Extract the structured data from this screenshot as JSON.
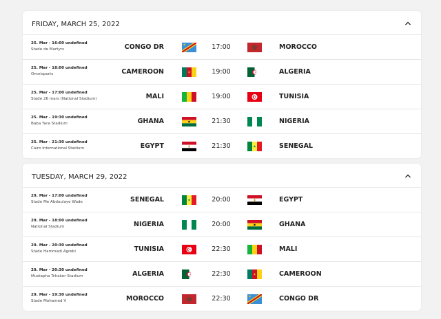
{
  "sections": [
    {
      "title": "FRIDAY, MARCH 25, 2022",
      "matches": [
        {
          "info": "25. Mar - 16:00 undefined",
          "venue": "Stade de Martyrs",
          "home": "CONGO DR",
          "time": "17:00",
          "away": "MOROCCO"
        },
        {
          "info": "25. Mar - 18:00 undefined",
          "venue": "Omnisports",
          "home": "CAMEROON",
          "time": "19:00",
          "away": "ALGERIA"
        },
        {
          "info": "25. Mar - 17:00 undefined",
          "venue": "Stade 26 mars (National Stadium)",
          "home": "MALI",
          "time": "19:00",
          "away": "TUNISIA"
        },
        {
          "info": "25. Mar - 19:30 undefined",
          "venue": "Baba Yara Stadium",
          "home": "GHANA",
          "time": "21:30",
          "away": "NIGERIA"
        },
        {
          "info": "25. Mar - 21:30 undefined",
          "venue": "Cairo International Stadium",
          "home": "EGYPT",
          "time": "21:30",
          "away": "SENEGAL"
        }
      ]
    },
    {
      "title": "TUESDAY, MARCH 29, 2022",
      "matches": [
        {
          "info": "29. Mar - 17:00 undefined",
          "venue": "Stade Me Abdoulaye Wade",
          "home": "SENEGAL",
          "time": "20:00",
          "away": "EGYPT"
        },
        {
          "info": "29. Mar - 18:00 undefined",
          "venue": "National Stadium",
          "home": "NIGERIA",
          "time": "20:00",
          "away": "GHANA"
        },
        {
          "info": "29. Mar - 20:30 undefined",
          "venue": "Stade Hammadi Agrebi",
          "home": "TUNISIA",
          "time": "22:30",
          "away": "MALI"
        },
        {
          "info": "29. Mar - 20:30 undefined",
          "venue": "Mustapha Tchaker Stadium",
          "home": "ALGERIA",
          "time": "22:30",
          "away": "CAMEROON"
        },
        {
          "info": "29. Mar - 19:30 undefined",
          "venue": "Stade Mohamed V",
          "home": "MOROCCO",
          "time": "22:30",
          "away": "CONGO DR"
        }
      ]
    }
  ]
}
